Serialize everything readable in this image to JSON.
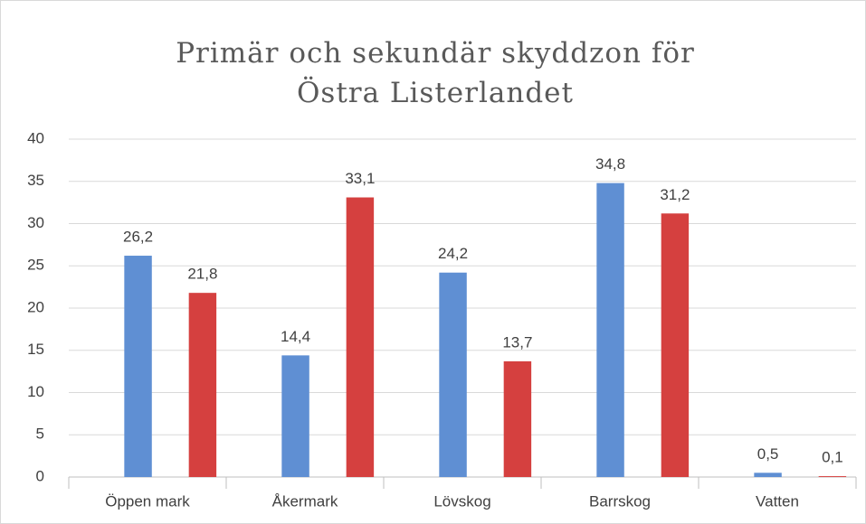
{
  "chart_data": {
    "type": "bar",
    "title": "Primär och sekundär skyddzon för Östra Listerlandet",
    "categories": [
      "Öppen mark",
      "Åkermark",
      "Lövskog",
      "Barrskog",
      "Vatten"
    ],
    "series": [
      {
        "color": "#5f8fd3",
        "values": [
          26.2,
          14.4,
          24.2,
          34.8,
          0.5
        ],
        "value_labels": [
          "26,2",
          "14,4",
          "24,2",
          "34,8",
          "0,5"
        ]
      },
      {
        "color": "#d5403f",
        "values": [
          21.8,
          33.1,
          13.7,
          31.2,
          0.1
        ],
        "value_labels": [
          "21,8",
          "33,1",
          "13,7",
          "31,2",
          "0,1"
        ]
      }
    ],
    "ylim": [
      0,
      40
    ],
    "yticks": [
      0,
      5,
      10,
      15,
      20,
      25,
      30,
      35,
      40
    ],
    "grid": true
  }
}
